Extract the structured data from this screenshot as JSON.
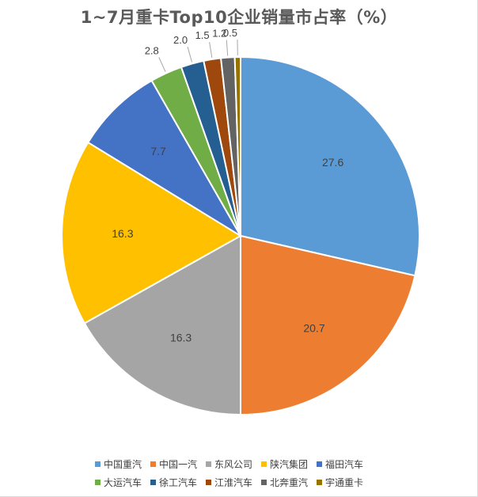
{
  "chart_data": {
    "type": "pie",
    "title": "1~7月重卡Top10企业销量市占率（%）",
    "categories": [
      "中国重汽",
      "中国一汽",
      "东风公司",
      "陕汽集团",
      "福田汽车",
      "大运汽车",
      "徐工汽车",
      "江淮汽车",
      "北奔重汽",
      "宇通重卡"
    ],
    "values": [
      27.6,
      20.7,
      16.3,
      16.3,
      7.7,
      2.8,
      2.0,
      1.5,
      1.2,
      0.5
    ],
    "labels": [
      "27.6",
      "20.7",
      "16.3",
      "16.3",
      "7.7",
      "2.8",
      "2.0",
      "1.5",
      "1.2",
      "0.5"
    ],
    "colors": [
      "#5b9bd5",
      "#ed7d31",
      "#a5a5a5",
      "#ffc000",
      "#4472c4",
      "#70ad47",
      "#255e91",
      "#9e480e",
      "#636363",
      "#997300"
    ],
    "legend_position": "bottom"
  }
}
